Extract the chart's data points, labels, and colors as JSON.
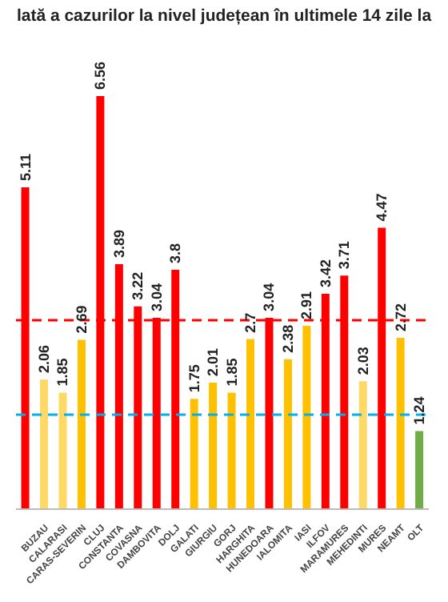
{
  "chart_data": {
    "type": "bar",
    "title": "lată a cazurilor la nivel județean în ultimele 14 zile la",
    "categories": [
      null,
      "BUZAU",
      "CALARASI",
      "CARAS-SEVERIN",
      "CLUJ",
      "CONSTANTA",
      "COVASNA",
      "DAMBOVITA",
      "DOLJ",
      "GALATI",
      "GIURGIU",
      "GORJ",
      "HARGHITA",
      "HUNEDOARA",
      "IALOMITA",
      "IASI",
      "ILFOV",
      "MARAMURES",
      "MEHEDINTI",
      "MURES",
      "NEAMT",
      "OLT"
    ],
    "values": [
      5.11,
      2.06,
      1.85,
      2.69,
      6.56,
      3.89,
      3.22,
      3.04,
      3.8,
      1.75,
      2.01,
      1.85,
      2.7,
      3.04,
      2.38,
      2.91,
      3.42,
      3.71,
      2.03,
      4.47,
      2.72,
      1.24
    ],
    "colors": [
      "#ff0000",
      "#ffd966",
      "#ffd966",
      "#ffc000",
      "#ff0000",
      "#ff0000",
      "#ff0000",
      "#ff0000",
      "#ff0000",
      "#ffc000",
      "#ffc000",
      "#ffc000",
      "#ffc000",
      "#ff0000",
      "#ffc000",
      "#ffc000",
      "#ff0000",
      "#ff0000",
      "#ffd966",
      "#ff0000",
      "#ffc000",
      "#70ad47"
    ],
    "data_labels": true,
    "ref_lines": [
      {
        "axis": "y",
        "value": 3,
        "color": "#ff0000",
        "line_style": "dashed"
      },
      {
        "axis": "y",
        "value": 1.5,
        "color": "#00b0f0",
        "line_style": "dashed"
      }
    ]
  }
}
